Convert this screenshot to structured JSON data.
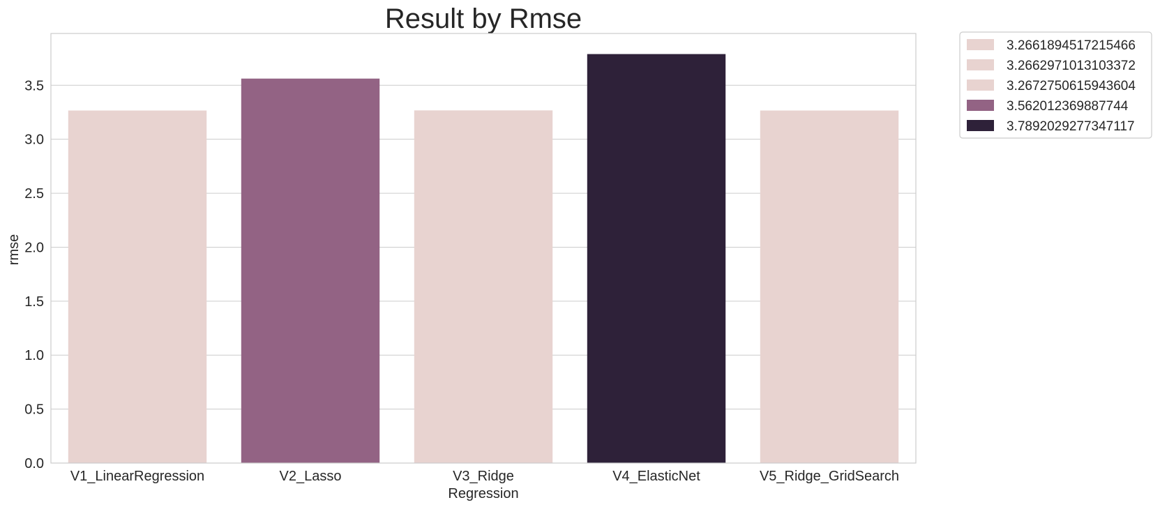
{
  "chart_data": {
    "type": "bar",
    "title": "Result by Rmse",
    "xlabel": "Regression",
    "ylabel": "rmse",
    "categories": [
      "V1_LinearRegression",
      "V2_Lasso",
      "V3_Ridge",
      "V4_ElasticNet",
      "V5_Ridge_GridSearch"
    ],
    "values": [
      3.2661894517215466,
      3.562012369887744,
      3.2672750615943604,
      3.7892029277347117,
      3.2662971013103372
    ],
    "bar_colors": [
      "#e8d3d0",
      "#936384",
      "#e8d3d0",
      "#2e2139",
      "#e8d3d0"
    ],
    "ylim": [
      0,
      3.98
    ],
    "yticks": [
      "0.0",
      "0.5",
      "1.0",
      "1.5",
      "2.0",
      "2.5",
      "3.0",
      "3.5"
    ],
    "grid": true,
    "legend": {
      "placement": "outside-top-right",
      "entries": [
        {
          "label": "3.2661894517215466",
          "color": "#e8d3d0"
        },
        {
          "label": "3.2662971013103372",
          "color": "#e8d3d0"
        },
        {
          "label": "3.2672750615943604",
          "color": "#e8d3d0"
        },
        {
          "label": "3.562012369887744",
          "color": "#936384"
        },
        {
          "label": "3.7892029277347117",
          "color": "#2e2139"
        }
      ]
    }
  }
}
